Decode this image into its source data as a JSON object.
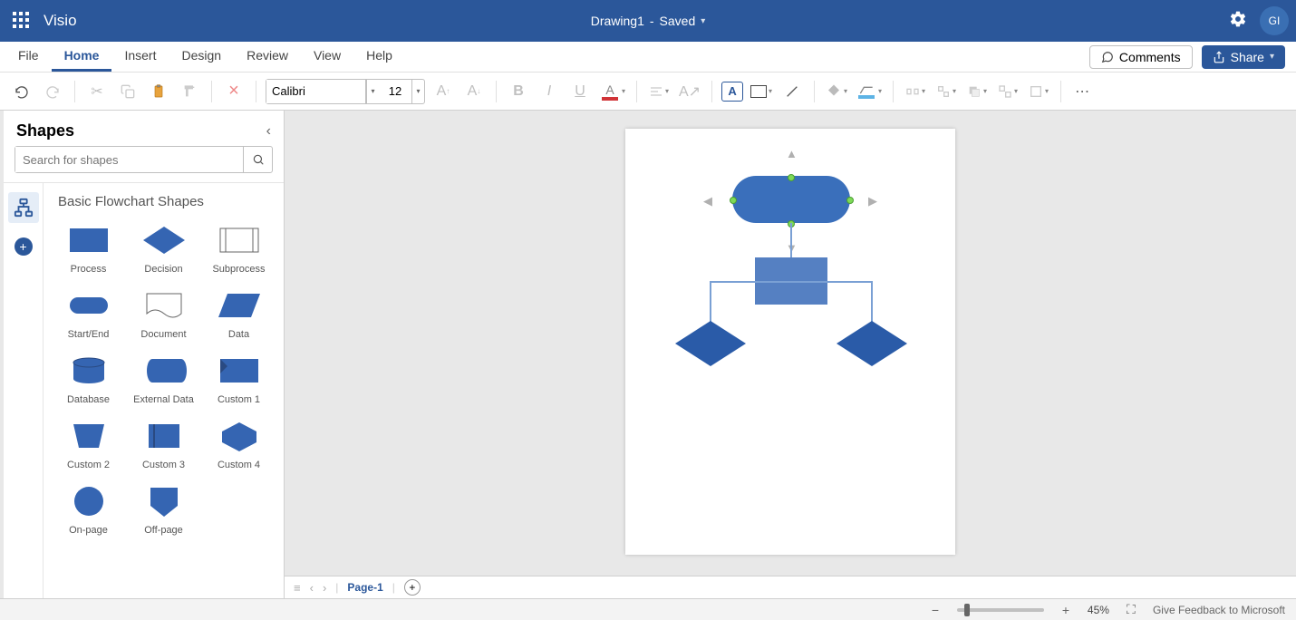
{
  "brand": {
    "app": "Visio",
    "accent": "#2b579a"
  },
  "titlebar": {
    "doc": "Drawing1",
    "status": "Saved",
    "avatar": "GI"
  },
  "menu": {
    "tabs": [
      "File",
      "Home",
      "Insert",
      "Design",
      "Review",
      "View",
      "Help"
    ],
    "active": 1,
    "comments": "Comments",
    "share": "Share"
  },
  "ribbon": {
    "font": "Calibri",
    "size": "12",
    "text_color_bar": "#d13438",
    "fill_bar": "#ffffff",
    "line_bar": "#5db3e5"
  },
  "shapes_panel": {
    "title": "Shapes",
    "search_ph": "Search for shapes",
    "category": "Basic Flowchart Shapes",
    "shape_color": "#3565b2",
    "shapes": [
      {
        "name": "Process"
      },
      {
        "name": "Decision"
      },
      {
        "name": "Subprocess"
      },
      {
        "name": "Start/End"
      },
      {
        "name": "Document"
      },
      {
        "name": "Data"
      },
      {
        "name": "Database"
      },
      {
        "name": "External Data"
      },
      {
        "name": "Custom 1"
      },
      {
        "name": "Custom 2"
      },
      {
        "name": "Custom 3"
      },
      {
        "name": "Custom 4"
      },
      {
        "name": "On-page"
      },
      {
        "name": "Off-page"
      }
    ]
  },
  "canvas": {
    "page_bg": "#ffffff",
    "node_color": "#3a6fbb",
    "proc_color": "#5580c2",
    "dec_color": "#2a5ba8",
    "conn_color": "#7aa0d4",
    "sel_green": "#7ed957"
  },
  "pages": {
    "current": "Page-1"
  },
  "status": {
    "zoom": "45%",
    "zoom_val": 0.12,
    "feedback": "Give Feedback to Microsoft"
  }
}
